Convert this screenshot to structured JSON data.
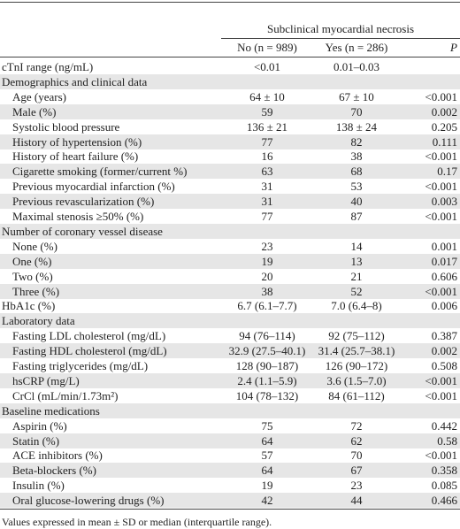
{
  "table": {
    "header": {
      "group": "Subclinical myocardial necrosis",
      "columns": [
        "No (n = 989)",
        "Yes (n = 286)",
        "P"
      ]
    },
    "rows": [
      {
        "label": "cTnI range (ng/mL)",
        "values": [
          "<0.01",
          "0.01–0.03"
        ]
      },
      {
        "section": "Demographics and clinical data",
        "rows": [
          {
            "label": "Age (years)",
            "values": [
              "64 ± 10",
              "67 ± 10",
              "<0.001"
            ]
          },
          {
            "label": "Male (%)",
            "values": [
              "59",
              "70",
              "0.002"
            ]
          },
          {
            "label": "Systolic blood pressure",
            "values": [
              "136 ± 21",
              "138 ± 24",
              "0.205"
            ]
          },
          {
            "label": "History of hypertension (%)",
            "values": [
              "77",
              "82",
              "0.111"
            ]
          },
          {
            "label": "History of heart failure (%)",
            "values": [
              "16",
              "38",
              "<0.001"
            ]
          },
          {
            "label": "Cigarette smoking (former/current %)",
            "values": [
              "63",
              "68",
              "0.17"
            ]
          },
          {
            "label": "Previous myocardial infarction (%)",
            "values": [
              "31",
              "53",
              "<0.001"
            ]
          },
          {
            "label": "Previous revascularization (%)",
            "values": [
              "31",
              "40",
              "0.003"
            ]
          },
          {
            "label": "Maximal stenosis ≥50% (%)",
            "values": [
              "77",
              "87",
              "<0.001"
            ]
          }
        ]
      },
      {
        "section": "Number of coronary vessel disease",
        "rows": [
          {
            "label": "None (%)",
            "values": [
              "23",
              "14",
              "0.001"
            ]
          },
          {
            "label": "One (%)",
            "values": [
              "19",
              "13",
              "0.017"
            ]
          },
          {
            "label": "Two (%)",
            "values": [
              "20",
              "21",
              "0.606"
            ]
          },
          {
            "label": "Three (%)",
            "values": [
              "38",
              "52",
              "<0.001"
            ]
          }
        ]
      },
      {
        "label": "HbA1c (%)",
        "values": [
          "6.7 (6.1–7.7)",
          "7.0 (6.4–8)",
          "0.006"
        ]
      },
      {
        "section": "Laboratory data",
        "rows": [
          {
            "label": "Fasting LDL cholesterol (mg/dL)",
            "values": [
              "94 (76–114)",
              "92 (75–112)",
              "0.387"
            ]
          },
          {
            "label": "Fasting HDL cholesterol (mg/dL)",
            "values": [
              "32.9 (27.5–40.1)",
              "31.4 (25.7–38.1)",
              "0.002"
            ]
          },
          {
            "label": "Fasting triglycerides (mg/dL)",
            "values": [
              "128 (90–187)",
              "126 (90–172)",
              "0.508"
            ]
          },
          {
            "label": "hsCRP (mg/L)",
            "values": [
              "2.4 (1.1–5.9)",
              "3.6 (1.5–7.0)",
              "<0.001"
            ]
          },
          {
            "label": "CrCl (mL/min/1.73m²)",
            "values": [
              "104 (78–132)",
              "84 (61–112)",
              "<0.001"
            ]
          }
        ]
      },
      {
        "section": "Baseline medications",
        "rows": [
          {
            "label": "Aspirin (%)",
            "values": [
              "75",
              "72",
              "0.442"
            ]
          },
          {
            "label": "Statin (%)",
            "values": [
              "64",
              "62",
              "0.58"
            ]
          },
          {
            "label": "ACE inhibitors (%)",
            "values": [
              "57",
              "70",
              "<0.001"
            ]
          },
          {
            "label": "Beta-blockers (%)",
            "values": [
              "64",
              "67",
              "0.358"
            ]
          },
          {
            "label": "Insulin (%)",
            "values": [
              "19",
              "23",
              "0.085"
            ]
          },
          {
            "label": "Oral glucose-lowering drugs (%)",
            "values": [
              "42",
              "44",
              "0.466"
            ]
          }
        ]
      }
    ],
    "footnote": "Values expressed in mean ± SD or median (interquartile range)."
  }
}
